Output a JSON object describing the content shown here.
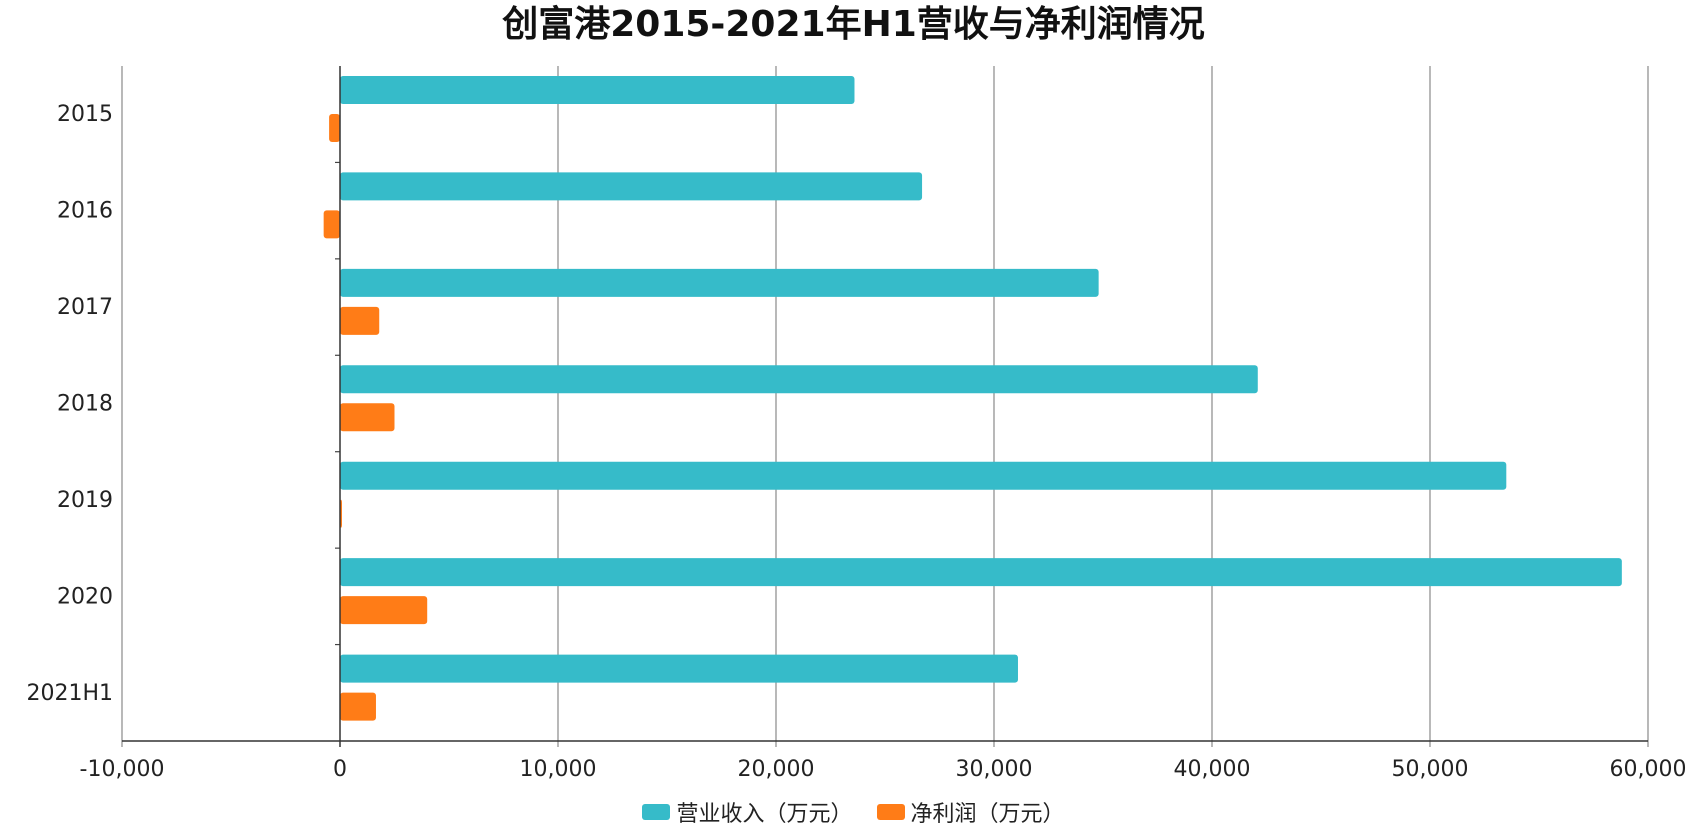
{
  "chart_data": {
    "type": "bar",
    "orientation": "horizontal",
    "title": "创富港2015-2021年H1营收与净利润情况",
    "categories": [
      "2015",
      "2016",
      "2017",
      "2018",
      "2019",
      "2020",
      "2021H1"
    ],
    "series": [
      {
        "name": "营业收入（万元）",
        "color": "#36bbc9",
        "values": [
          23600,
          26700,
          34800,
          42100,
          53500,
          58800,
          31100
        ]
      },
      {
        "name": "净利润（万元）",
        "color": "#ff7c17",
        "values": [
          -500,
          -750,
          1800,
          2500,
          50,
          4000,
          1650
        ]
      }
    ],
    "xlim": [
      -10000,
      60000
    ],
    "xticks": [
      -10000,
      0,
      10000,
      20000,
      30000,
      40000,
      50000,
      60000
    ],
    "xtick_labels": [
      "-10,000",
      "0",
      "10,000",
      "20,000",
      "30,000",
      "40,000",
      "50,000",
      "60,000"
    ],
    "grid": true,
    "legend_position": "bottom"
  }
}
